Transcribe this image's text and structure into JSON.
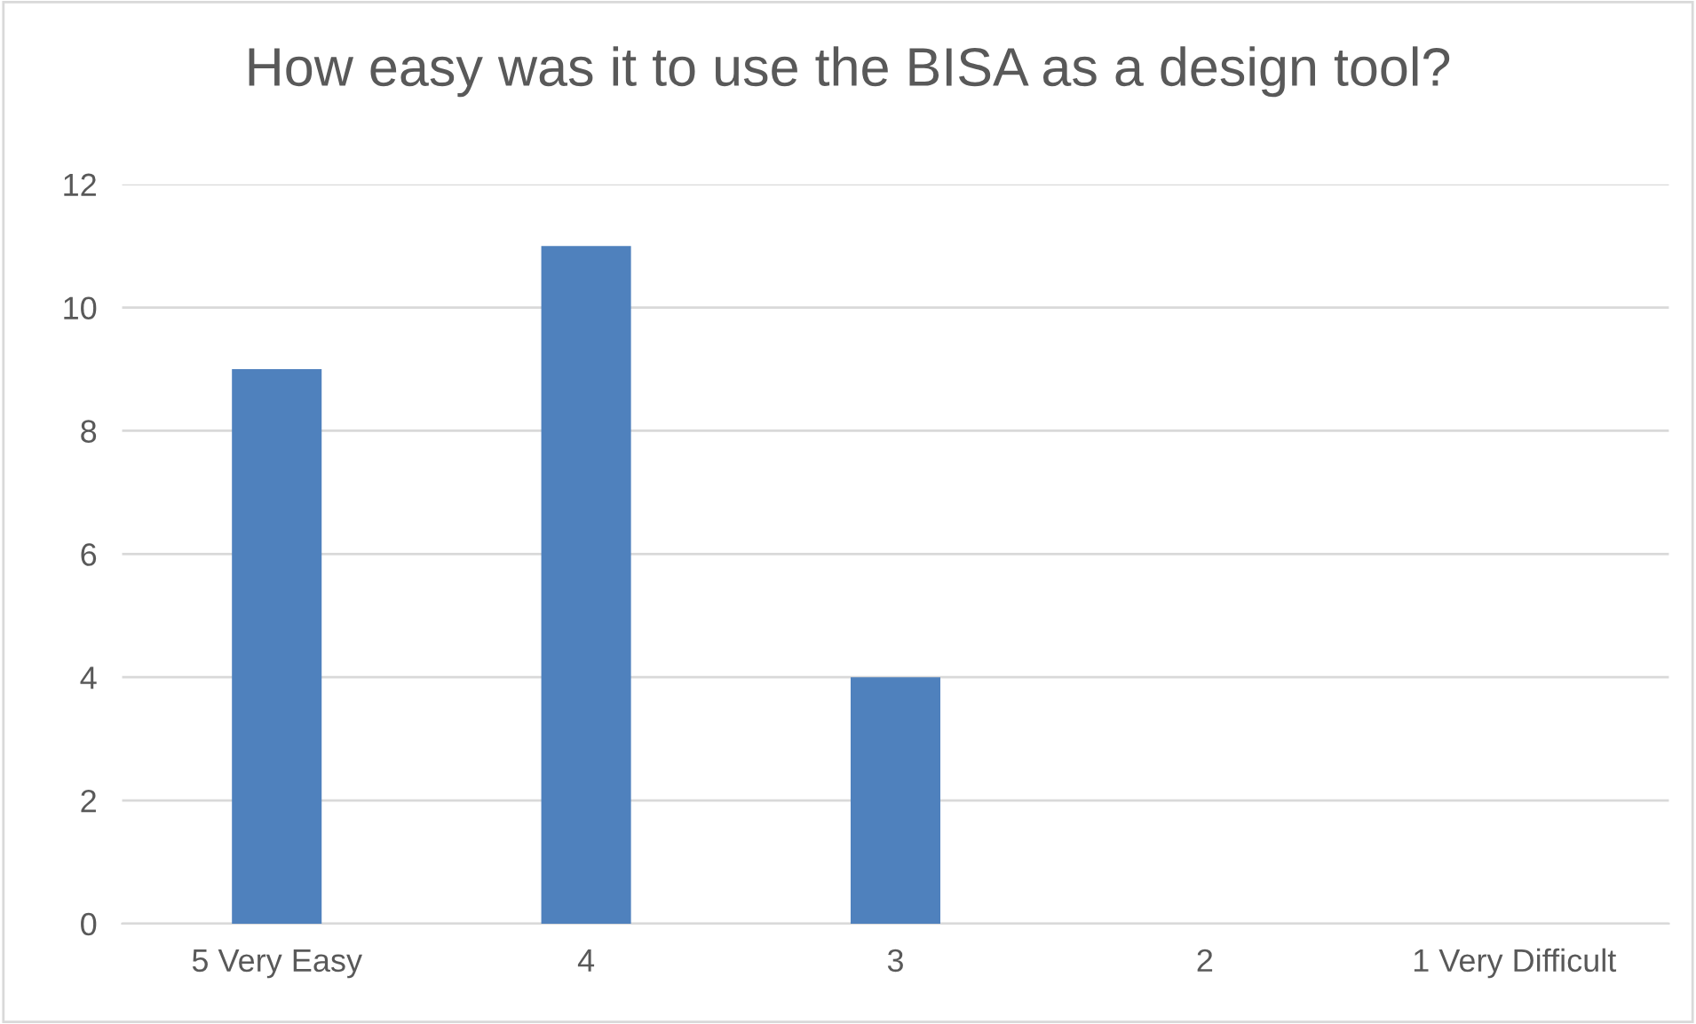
{
  "chart_data": {
    "type": "bar",
    "title": "How easy was it to use the BISA as a design tool?",
    "categories": [
      "5 Very Easy",
      "4",
      "3",
      "2",
      "1 Very Difficult"
    ],
    "values": [
      9,
      11,
      4,
      0,
      0
    ],
    "color": "#4f81bd",
    "ylim": [
      0,
      12
    ],
    "yticks": [
      0,
      2,
      4,
      6,
      8,
      10,
      12
    ],
    "grid": "y",
    "legend": false
  }
}
